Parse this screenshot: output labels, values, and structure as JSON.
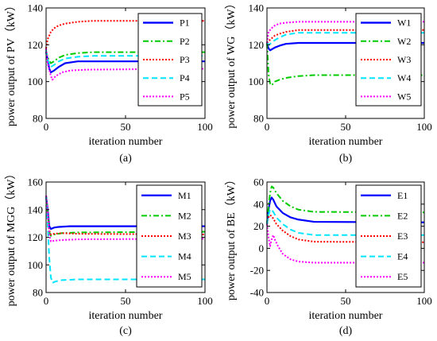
{
  "chart_data": [
    {
      "type": "line",
      "caption": "(a)",
      "xlabel": "iteration number",
      "ylabel": "power output of PV（kW）",
      "xlim": [
        0,
        100
      ],
      "ylim": [
        80,
        140
      ],
      "xticks": [
        0,
        50,
        100
      ],
      "yticks": [
        80,
        100,
        120,
        140
      ],
      "legend_position": "top-right",
      "series": [
        {
          "name": "P1",
          "color": "#0000ff",
          "style": "solid",
          "x": [
            0,
            1,
            2,
            3,
            5,
            8,
            12,
            20,
            30,
            100
          ],
          "y": [
            116,
            112,
            107,
            105,
            106,
            108,
            110,
            111,
            111,
            111
          ]
        },
        {
          "name": "P2",
          "color": "#00cc00",
          "style": "dashdot",
          "x": [
            0,
            1,
            3,
            5,
            8,
            12,
            20,
            30,
            100
          ],
          "y": [
            117,
            113,
            110,
            111,
            113,
            114.5,
            115.5,
            116,
            116
          ]
        },
        {
          "name": "P3",
          "color": "#ff0000",
          "style": "dotted",
          "x": [
            0,
            1,
            3,
            5,
            8,
            12,
            20,
            30,
            100
          ],
          "y": [
            118,
            123,
            127,
            129,
            130.5,
            131.5,
            132.5,
            133,
            133
          ]
        },
        {
          "name": "P4",
          "color": "#00e5ff",
          "style": "dashed",
          "x": [
            0,
            1,
            3,
            5,
            8,
            12,
            20,
            30,
            100
          ],
          "y": [
            117,
            112,
            108,
            109,
            111,
            112.5,
            113.5,
            114,
            114
          ]
        },
        {
          "name": "P5",
          "color": "#ff00ff",
          "style": "dotted",
          "x": [
            0,
            1,
            3,
            4,
            6,
            10,
            15,
            25,
            100
          ],
          "y": [
            118,
            110,
            103,
            101,
            103,
            105,
            106,
            106.5,
            107
          ]
        }
      ]
    },
    {
      "type": "line",
      "caption": "(b)",
      "xlabel": "iteration number",
      "ylabel": "power output of WG（kW）",
      "xlim": [
        0,
        100
      ],
      "ylim": [
        80,
        140
      ],
      "xticks": [
        0,
        50,
        100
      ],
      "yticks": [
        80,
        100,
        120,
        140
      ],
      "legend_position": "top-right",
      "series": [
        {
          "name": "W1",
          "color": "#0000ff",
          "style": "solid",
          "x": [
            0,
            1,
            2,
            3,
            5,
            8,
            12,
            20,
            100
          ],
          "y": [
            121,
            118,
            117,
            117.5,
            118.5,
            119.5,
            120.5,
            121,
            121
          ]
        },
        {
          "name": "W2",
          "color": "#00cc00",
          "style": "dashdot",
          "x": [
            0,
            1,
            2,
            3,
            5,
            8,
            12,
            20,
            30,
            100
          ],
          "y": [
            121,
            104,
            99,
            98,
            100,
            101,
            102,
            103,
            103.5,
            103.5
          ]
        },
        {
          "name": "W3",
          "color": "#ff0000",
          "style": "dotted",
          "x": [
            0,
            1,
            3,
            5,
            8,
            12,
            20,
            100
          ],
          "y": [
            121,
            122,
            123.5,
            125,
            126,
            127,
            128,
            128
          ]
        },
        {
          "name": "W4",
          "color": "#00e5ff",
          "style": "dashed",
          "x": [
            0,
            1,
            3,
            5,
            8,
            12,
            20,
            100
          ],
          "y": [
            121,
            120,
            121,
            122.5,
            124,
            125.5,
            126.5,
            126.5
          ]
        },
        {
          "name": "W5",
          "color": "#ff00ff",
          "style": "dotted",
          "x": [
            0,
            1,
            3,
            5,
            8,
            12,
            20,
            100
          ],
          "y": [
            121,
            127,
            129,
            130.5,
            131.5,
            132,
            132.5,
            132.5
          ]
        }
      ]
    },
    {
      "type": "line",
      "caption": "(c)",
      "xlabel": "iteration number",
      "ylabel": "power output of MGG（kW）",
      "xlim": [
        0,
        100
      ],
      "ylim": [
        80,
        160
      ],
      "xticks": [
        0,
        50,
        100
      ],
      "yticks": [
        80,
        100,
        120,
        140,
        160
      ],
      "legend_position": "top-right",
      "series": [
        {
          "name": "M1",
          "color": "#0000ff",
          "style": "solid",
          "x": [
            0,
            1,
            2,
            3,
            5,
            8,
            15,
            100
          ],
          "y": [
            150,
            140,
            128,
            126,
            127,
            127.5,
            128,
            128
          ]
        },
        {
          "name": "M2",
          "color": "#00cc00",
          "style": "dashdot",
          "x": [
            0,
            1,
            2,
            3,
            5,
            10,
            20,
            100
          ],
          "y": [
            150,
            137,
            124,
            121,
            122,
            123,
            123.5,
            124
          ]
        },
        {
          "name": "M3",
          "color": "#ff0000",
          "style": "dotted",
          "x": [
            0,
            1,
            2,
            3,
            5,
            10,
            20,
            100
          ],
          "y": [
            150,
            138,
            125,
            122,
            122.5,
            123,
            122.5,
            122
          ]
        },
        {
          "name": "M4",
          "color": "#00e5ff",
          "style": "dashed",
          "x": [
            0,
            1,
            2,
            3,
            4,
            6,
            10,
            20,
            100
          ],
          "y": [
            150,
            130,
            105,
            91,
            87,
            88,
            89,
            89.5,
            89.5
          ]
        },
        {
          "name": "M5",
          "color": "#ff00ff",
          "style": "dotted",
          "x": [
            0,
            1,
            2,
            3,
            5,
            10,
            20,
            100
          ],
          "y": [
            150,
            136,
            122,
            117,
            117.5,
            118,
            118.5,
            119
          ]
        }
      ]
    },
    {
      "type": "line",
      "caption": "(d)",
      "xlabel": "iteration number",
      "ylabel": "power output of BE（kW）",
      "xlim": [
        0,
        100
      ],
      "ylim": [
        -40,
        60
      ],
      "xticks": [
        0,
        50,
        100
      ],
      "yticks": [
        -40,
        -20,
        0,
        20,
        40,
        60
      ],
      "legend_position": "top-right",
      "series": [
        {
          "name": "E1",
          "color": "#0000ff",
          "style": "solid",
          "x": [
            0,
            1,
            2,
            3,
            4,
            6,
            10,
            15,
            20,
            30,
            100
          ],
          "y": [
            22,
            35,
            43,
            46,
            44,
            38,
            32,
            28,
            26,
            24,
            23.5
          ]
        },
        {
          "name": "E2",
          "color": "#00cc00",
          "style": "dashdot",
          "x": [
            0,
            1,
            2,
            3,
            4,
            6,
            10,
            15,
            20,
            30,
            100
          ],
          "y": [
            22,
            38,
            50,
            56,
            55,
            50,
            43,
            38,
            35,
            33,
            32.5
          ]
        },
        {
          "name": "E3",
          "color": "#ff0000",
          "style": "dotted",
          "x": [
            0,
            1,
            2,
            3,
            4,
            6,
            10,
            15,
            20,
            30,
            100
          ],
          "y": [
            22,
            28,
            30,
            29,
            27,
            22,
            16,
            11,
            8,
            6,
            5.5
          ]
        },
        {
          "name": "E4",
          "color": "#00e5ff",
          "style": "dashed",
          "x": [
            0,
            1,
            2,
            3,
            4,
            6,
            10,
            15,
            20,
            30,
            100
          ],
          "y": [
            22,
            30,
            35,
            35,
            33,
            28,
            22,
            17,
            14,
            12,
            12
          ]
        },
        {
          "name": "E5",
          "color": "#ff00ff",
          "style": "dotted",
          "x": [
            0,
            1,
            2,
            3,
            4,
            5,
            7,
            10,
            15,
            20,
            30,
            100
          ],
          "y": [
            22,
            10,
            2,
            8,
            12,
            8,
            2,
            -5,
            -10,
            -12,
            -13,
            -13
          ]
        }
      ]
    }
  ]
}
